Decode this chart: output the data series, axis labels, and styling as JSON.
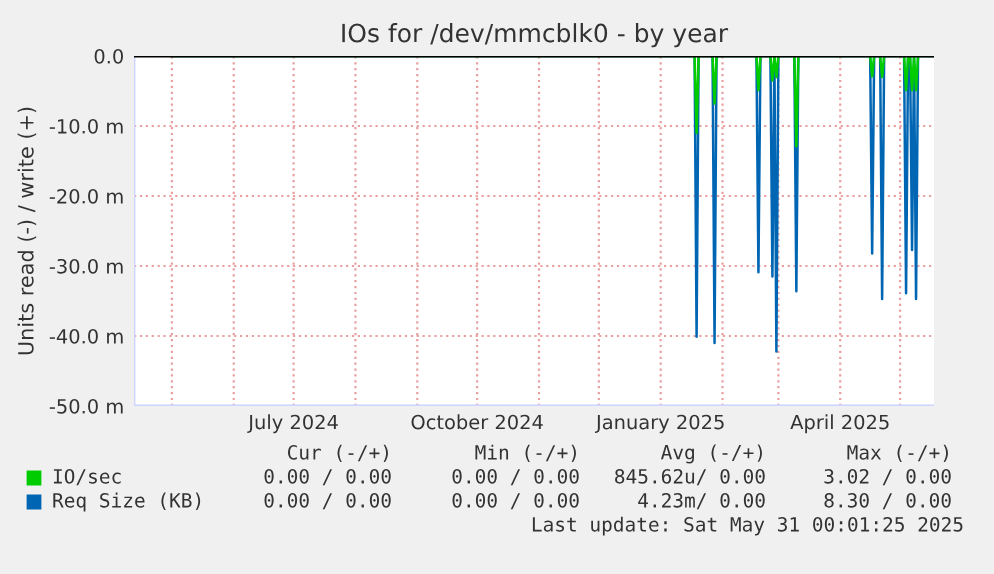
{
  "chart_data": {
    "type": "line",
    "title": "IOs for /dev/mmcblk0 - by year",
    "ylabel": "Units read (-) / write (+)",
    "x": [
      "2024-05-01",
      "2025-01-18",
      "2025-01-19",
      "2025-01-20",
      "2025-01-27",
      "2025-01-28",
      "2025-01-29",
      "2025-02-18",
      "2025-02-19",
      "2025-02-20",
      "2025-02-25",
      "2025-02-26",
      "2025-02-27",
      "2025-02-28",
      "2025-03-01",
      "2025-03-09",
      "2025-03-10",
      "2025-03-11",
      "2025-04-16",
      "2025-04-17",
      "2025-04-18",
      "2025-04-21",
      "2025-04-22",
      "2025-04-23",
      "2025-05-03",
      "2025-05-04",
      "2025-05-05",
      "2025-05-06",
      "2025-05-07",
      "2025-05-08",
      "2025-05-09",
      "2025-05-10",
      "2025-05-18"
    ],
    "series": [
      {
        "name": "IO/sec",
        "color": "#00cc00",
        "values": [
          0,
          0,
          -11.0,
          0,
          0,
          -6.8,
          0,
          0,
          -4.9,
          0,
          0,
          -3.5,
          0,
          -3.0,
          0,
          0,
          -12.9,
          0,
          0,
          -2.9,
          0,
          0,
          -3.0,
          0,
          0,
          -4.9,
          0,
          0,
          -4.9,
          0,
          -4.9,
          0,
          0
        ]
      },
      {
        "name": "Req Size (KB)",
        "color": "#0066b3",
        "values": [
          0,
          0,
          -40.1,
          0,
          0,
          -41.0,
          0,
          0,
          -30.9,
          0,
          0,
          -31.5,
          0,
          -42.2,
          0,
          0,
          -33.6,
          0,
          0,
          -28.2,
          0,
          0,
          -34.7,
          0,
          0,
          -33.9,
          0,
          0,
          -27.7,
          0,
          -34.7,
          0,
          0
        ]
      }
    ],
    "xlim": [
      "2024-04-12",
      "2025-05-18"
    ],
    "xticks": [
      {
        "value": "2024-05-01",
        "label": null
      },
      {
        "value": "2024-06-01",
        "label": null
      },
      {
        "value": "2024-07-01",
        "label": "July 2024"
      },
      {
        "value": "2024-08-01",
        "label": null
      },
      {
        "value": "2024-09-01",
        "label": null
      },
      {
        "value": "2024-10-01",
        "label": "October 2024"
      },
      {
        "value": "2024-11-01",
        "label": null
      },
      {
        "value": "2024-12-01",
        "label": null
      },
      {
        "value": "2025-01-01",
        "label": "January 2025"
      },
      {
        "value": "2025-02-01",
        "label": null
      },
      {
        "value": "2025-03-01",
        "label": null
      },
      {
        "value": "2025-04-01",
        "label": "April 2025"
      },
      {
        "value": "2025-05-01",
        "label": null
      }
    ],
    "ylim": [
      -50,
      0
    ],
    "yticks": [
      {
        "value": -50,
        "label": "-50.0 m"
      },
      {
        "value": -40,
        "label": "-40.0 m"
      },
      {
        "value": -30,
        "label": "-30.0 m"
      },
      {
        "value": -20,
        "label": "-20.0 m"
      },
      {
        "value": -10,
        "label": "-10.0 m"
      },
      {
        "value": 0,
        "label": "0.0"
      }
    ],
    "ref_lines": [
      {
        "axis": "y",
        "value": 0,
        "label": null,
        "color": "#000000"
      }
    ],
    "grid": true,
    "legend": "bottom left",
    "annotations": [
      "Cur (-/+)",
      "Min (-/+)",
      "Avg (-/+)",
      "Max (-/+)",
      "0.00 / 0.00",
      "0.00 / 0.00",
      "845.62u/ 0.00",
      "3.02 / 0.00",
      "0.00 / 0.00",
      "0.00 / 0.00",
      "4.23m/ 0.00",
      "8.30 / 0.00",
      "Last update: Sat May 31 00:01:25 2025"
    ]
  }
}
